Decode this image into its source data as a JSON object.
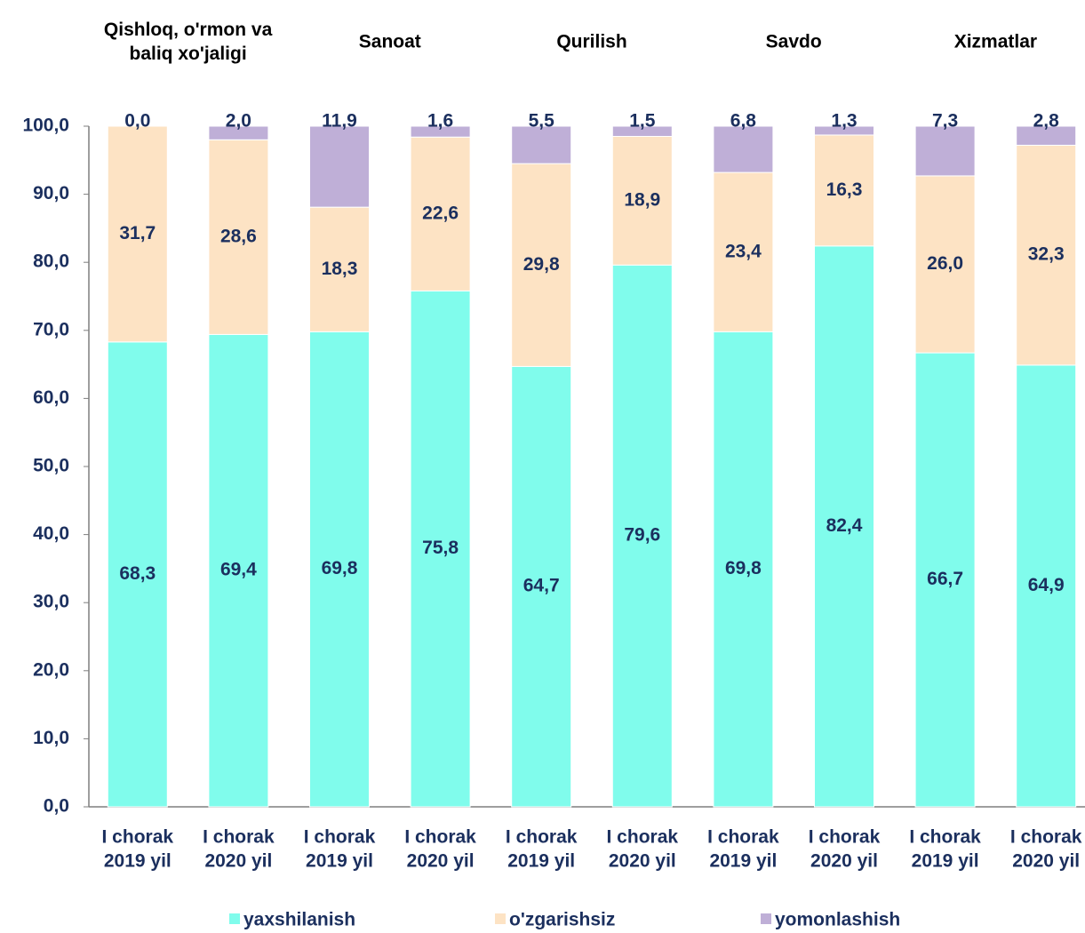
{
  "chart_data": {
    "type": "stacked_bar",
    "group_labels": [
      [
        "Qishloq, o'rmon va",
        "baliq xo'jaligi"
      ],
      [
        "Sanoat"
      ],
      [
        "Qurilish"
      ],
      [
        "Savdo"
      ],
      [
        "Xizmatlar"
      ]
    ],
    "categories": [
      [
        "I chorak",
        "2019 yil"
      ],
      [
        "I chorak",
        "2020 yil"
      ],
      [
        "I chorak",
        "2019 yil"
      ],
      [
        "I chorak",
        "2020 yil"
      ],
      [
        "I chorak",
        "2019 yil"
      ],
      [
        "I chorak",
        "2020 yil"
      ],
      [
        "I chorak",
        "2019 yil"
      ],
      [
        "I chorak",
        "2020 yil"
      ],
      [
        "I chorak",
        "2019 yil"
      ],
      [
        "I chorak",
        "2020 yil"
      ]
    ],
    "series": [
      {
        "name": "yaxshilanish",
        "color": "#80fcec",
        "values": [
          68.3,
          69.4,
          69.8,
          75.8,
          64.7,
          79.6,
          69.8,
          82.4,
          66.7,
          64.9
        ],
        "value_labels": [
          "68,3",
          "69,4",
          "69,8",
          "75,8",
          "64,7",
          "79,6",
          "69,8",
          "82,4",
          "66,7",
          "64,9"
        ]
      },
      {
        "name": "o'zgarishsiz",
        "color": "#fde3c4",
        "values": [
          31.7,
          28.6,
          18.3,
          22.6,
          29.8,
          18.9,
          23.4,
          16.3,
          26.0,
          32.3
        ],
        "value_labels": [
          "31,7",
          "28,6",
          "18,3",
          "22,6",
          "29,8",
          "18,9",
          "23,4",
          "16,3",
          "26,0",
          "32,3"
        ]
      },
      {
        "name": "yomonlashish",
        "color": "#bfafd7",
        "values": [
          0.0,
          2.0,
          11.9,
          1.6,
          5.5,
          1.5,
          6.8,
          1.3,
          7.3,
          2.8
        ],
        "value_labels": [
          "0,0",
          "2,0",
          "11,9",
          "1,6",
          "5,5",
          "1,5",
          "6,8",
          "1,3",
          "7,3",
          "2,8"
        ]
      }
    ],
    "ylim": [
      0,
      100
    ],
    "yticks": [
      {
        "value": 0,
        "label": "0,0"
      },
      {
        "value": 10,
        "label": "10,0"
      },
      {
        "value": 20,
        "label": "20,0"
      },
      {
        "value": 30,
        "label": "30,0"
      },
      {
        "value": 40,
        "label": "40,0"
      },
      {
        "value": 50,
        "label": "50,0"
      },
      {
        "value": 60,
        "label": "60,0"
      },
      {
        "value": 70,
        "label": "70,0"
      },
      {
        "value": 80,
        "label": "80,0"
      },
      {
        "value": 90,
        "label": "90,0"
      },
      {
        "value": 100,
        "label": "100,0"
      }
    ],
    "grid": false,
    "legend": "bottom"
  }
}
